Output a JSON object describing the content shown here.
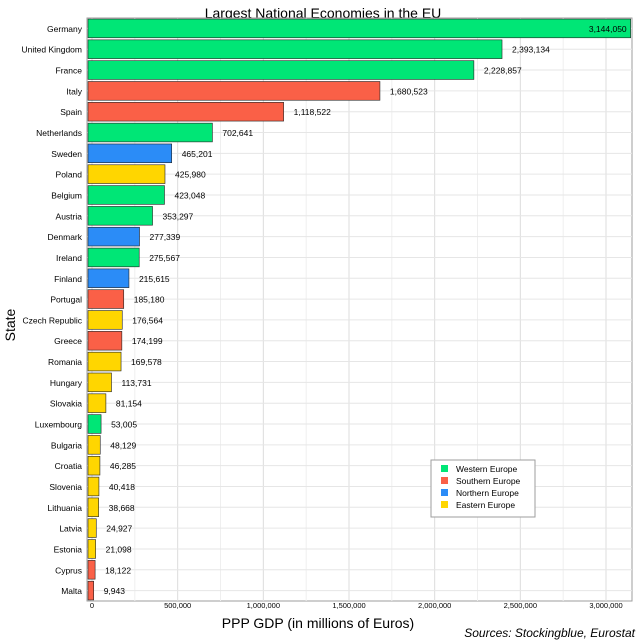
{
  "chart_data": {
    "type": "bar",
    "orientation": "horizontal",
    "title": "Largest National Economies in the EU",
    "xlabel": "PPP GDP (in millions of Euros)",
    "ylabel": "State",
    "xlim": [
      0,
      3150000
    ],
    "x_ticks": [
      0,
      500000,
      1000000,
      1500000,
      2000000,
      2500000,
      3000000
    ],
    "x_tick_labels": [
      "0",
      "500,000",
      "1,000,000",
      "1,500,000",
      "2,000,000",
      "2,500,000",
      "3,000,000"
    ],
    "grid": true,
    "legend_position": "bottom-right",
    "source": "Sources: Stockingblue, Eurostat",
    "regions": [
      {
        "name": "Western Europe",
        "color": "#00e676"
      },
      {
        "name": "Southern Europe",
        "color": "#fa6047"
      },
      {
        "name": "Northern Europe",
        "color": "#2b8cf7"
      },
      {
        "name": "Eastern Europe",
        "color": "#ffd600"
      }
    ],
    "bars": [
      {
        "state": "Germany",
        "value": 3144050,
        "label": "3,144,050",
        "region": "Western Europe"
      },
      {
        "state": "United Kingdom",
        "value": 2393134,
        "label": "2,393,134",
        "region": "Western Europe"
      },
      {
        "state": "France",
        "value": 2228857,
        "label": "2,228,857",
        "region": "Western Europe"
      },
      {
        "state": "Italy",
        "value": 1680523,
        "label": "1,680,523",
        "region": "Southern Europe"
      },
      {
        "state": "Spain",
        "value": 1118522,
        "label": "1,118,522",
        "region": "Southern Europe"
      },
      {
        "state": "Netherlands",
        "value": 702641,
        "label": "702,641",
        "region": "Western Europe"
      },
      {
        "state": "Sweden",
        "value": 465201,
        "label": "465,201",
        "region": "Northern Europe"
      },
      {
        "state": "Poland",
        "value": 425980,
        "label": "425,980",
        "region": "Eastern Europe"
      },
      {
        "state": "Belgium",
        "value": 423048,
        "label": "423,048",
        "region": "Western Europe"
      },
      {
        "state": "Austria",
        "value": 353297,
        "label": "353,297",
        "region": "Western Europe"
      },
      {
        "state": "Denmark",
        "value": 277339,
        "label": "277,339",
        "region": "Northern Europe"
      },
      {
        "state": "Ireland",
        "value": 275567,
        "label": "275,567",
        "region": "Western Europe"
      },
      {
        "state": "Finland",
        "value": 215615,
        "label": "215,615",
        "region": "Northern Europe"
      },
      {
        "state": "Portugal",
        "value": 185180,
        "label": "185,180",
        "region": "Southern Europe"
      },
      {
        "state": "Czech Republic",
        "value": 176564,
        "label": "176,564",
        "region": "Eastern Europe"
      },
      {
        "state": "Greece",
        "value": 174199,
        "label": "174,199",
        "region": "Southern Europe"
      },
      {
        "state": "Romania",
        "value": 169578,
        "label": "169,578",
        "region": "Eastern Europe"
      },
      {
        "state": "Hungary",
        "value": 113731,
        "label": "113,731",
        "region": "Eastern Europe"
      },
      {
        "state": "Slovakia",
        "value": 81154,
        "label": "81,154",
        "region": "Eastern Europe"
      },
      {
        "state": "Luxembourg",
        "value": 53005,
        "label": "53,005",
        "region": "Western Europe"
      },
      {
        "state": "Bulgaria",
        "value": 48129,
        "label": "48,129",
        "region": "Eastern Europe"
      },
      {
        "state": "Croatia",
        "value": 46285,
        "label": "46,285",
        "region": "Eastern Europe"
      },
      {
        "state": "Slovenia",
        "value": 40418,
        "label": "40,418",
        "region": "Eastern Europe"
      },
      {
        "state": "Lithuania",
        "value": 38668,
        "label": "38,668",
        "region": "Eastern Europe"
      },
      {
        "state": "Latvia",
        "value": 24927,
        "label": "24,927",
        "region": "Eastern Europe"
      },
      {
        "state": "Estonia",
        "value": 21098,
        "label": "21,098",
        "region": "Eastern Europe"
      },
      {
        "state": "Cyprus",
        "value": 18122,
        "label": "18,122",
        "region": "Southern Europe"
      },
      {
        "state": "Malta",
        "value": 9943,
        "label": "9,943",
        "region": "Southern Europe"
      }
    ]
  }
}
